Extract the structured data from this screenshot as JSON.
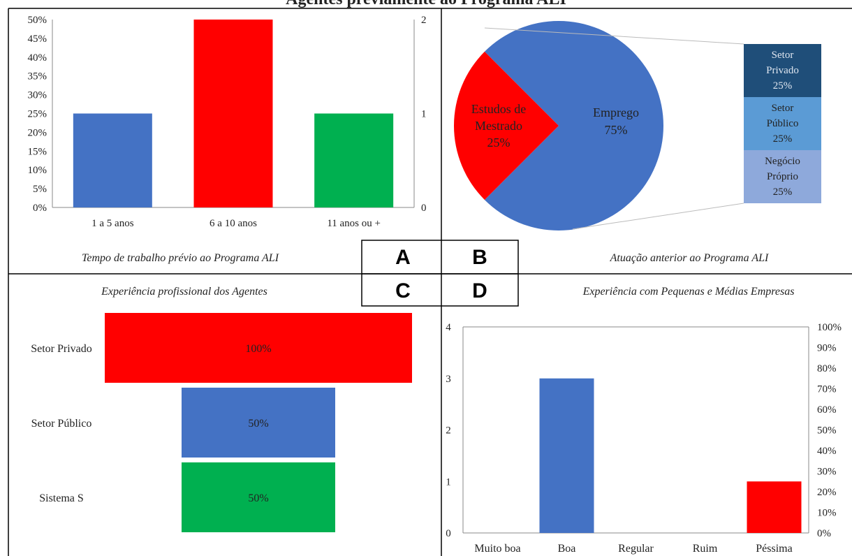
{
  "page_title": "Agentes previamente ao Programa ALI",
  "colors": {
    "blue": "#4472C4",
    "red": "#FF0000",
    "green": "#00B050",
    "dark_blue": "#1F4E79",
    "mid_blue": "#5B9BD5",
    "light_blue": "#8EA9DB"
  },
  "panel_labels": [
    "A",
    "B",
    "C",
    "D"
  ],
  "chart_data": [
    {
      "panel": "A",
      "type": "bar",
      "title": "Tempo de trabalho prévio ao Programa ALI",
      "categories": [
        "1 a 5 anos",
        "6 a 10 anos",
        "11 anos ou +"
      ],
      "values": [
        1,
        2,
        1
      ],
      "colors": [
        "#4472C4",
        "#FF0000",
        "#00B050"
      ],
      "ylim": [
        0,
        2
      ],
      "left_axis_ticks": [
        "0%",
        "5%",
        "10%",
        "15%",
        "20%",
        "25%",
        "30%",
        "35%",
        "40%",
        "45%",
        "50%"
      ],
      "right_axis_ticks": [
        "0",
        "1",
        "2"
      ],
      "grid": false
    },
    {
      "panel": "B",
      "type": "pie",
      "title": "Atuação anterior ao Programa ALI",
      "slices": [
        {
          "line1": "Emprego",
          "line2": "",
          "pct_label": "75%",
          "value": 75,
          "color": "#4472C4"
        },
        {
          "line1": "Estudos de",
          "line2": "Mestrado",
          "pct_label": "25%",
          "value": 25,
          "color": "#FF0000"
        }
      ],
      "breakdown": [
        {
          "line1": "Setor",
          "line2": "Privado",
          "pct_label": "25%",
          "value": 25,
          "color": "#1F4E79"
        },
        {
          "line1": "Setor",
          "line2": "Público",
          "pct_label": "25%",
          "value": 25,
          "color": "#5B9BD5"
        },
        {
          "line1": "Negócio",
          "line2": "Próprio",
          "pct_label": "25%",
          "value": 25,
          "color": "#8EA9DB"
        }
      ]
    },
    {
      "panel": "C",
      "type": "bar",
      "orientation": "horizontal-funnel",
      "title": "Experiência profissional dos Agentes",
      "categories": [
        "Setor Privado",
        "Setor Público",
        "Sistema S"
      ],
      "values": [
        100,
        50,
        50
      ],
      "value_labels": [
        "100%",
        "50%",
        "50%"
      ],
      "colors": [
        "#FF0000",
        "#4472C4",
        "#00B050"
      ],
      "xlim": [
        0,
        100
      ]
    },
    {
      "panel": "D",
      "type": "bar",
      "title": "Experiência com Pequenas e Médias Empresas",
      "categories": [
        "Muito boa",
        "Boa",
        "Regular",
        "Ruim",
        "Péssima"
      ],
      "values": [
        0,
        3,
        0,
        0,
        1
      ],
      "colors": [
        "#4472C4",
        "#4472C4",
        "#4472C4",
        "#4472C4",
        "#FF0000"
      ],
      "ylim": [
        0,
        4
      ],
      "left_axis_ticks": [
        "0",
        "1",
        "2",
        "3",
        "4"
      ],
      "right_axis_ticks": [
        "0%",
        "10%",
        "20%",
        "30%",
        "40%",
        "50%",
        "60%",
        "70%",
        "80%",
        "90%",
        "100%"
      ],
      "grid": false
    }
  ]
}
